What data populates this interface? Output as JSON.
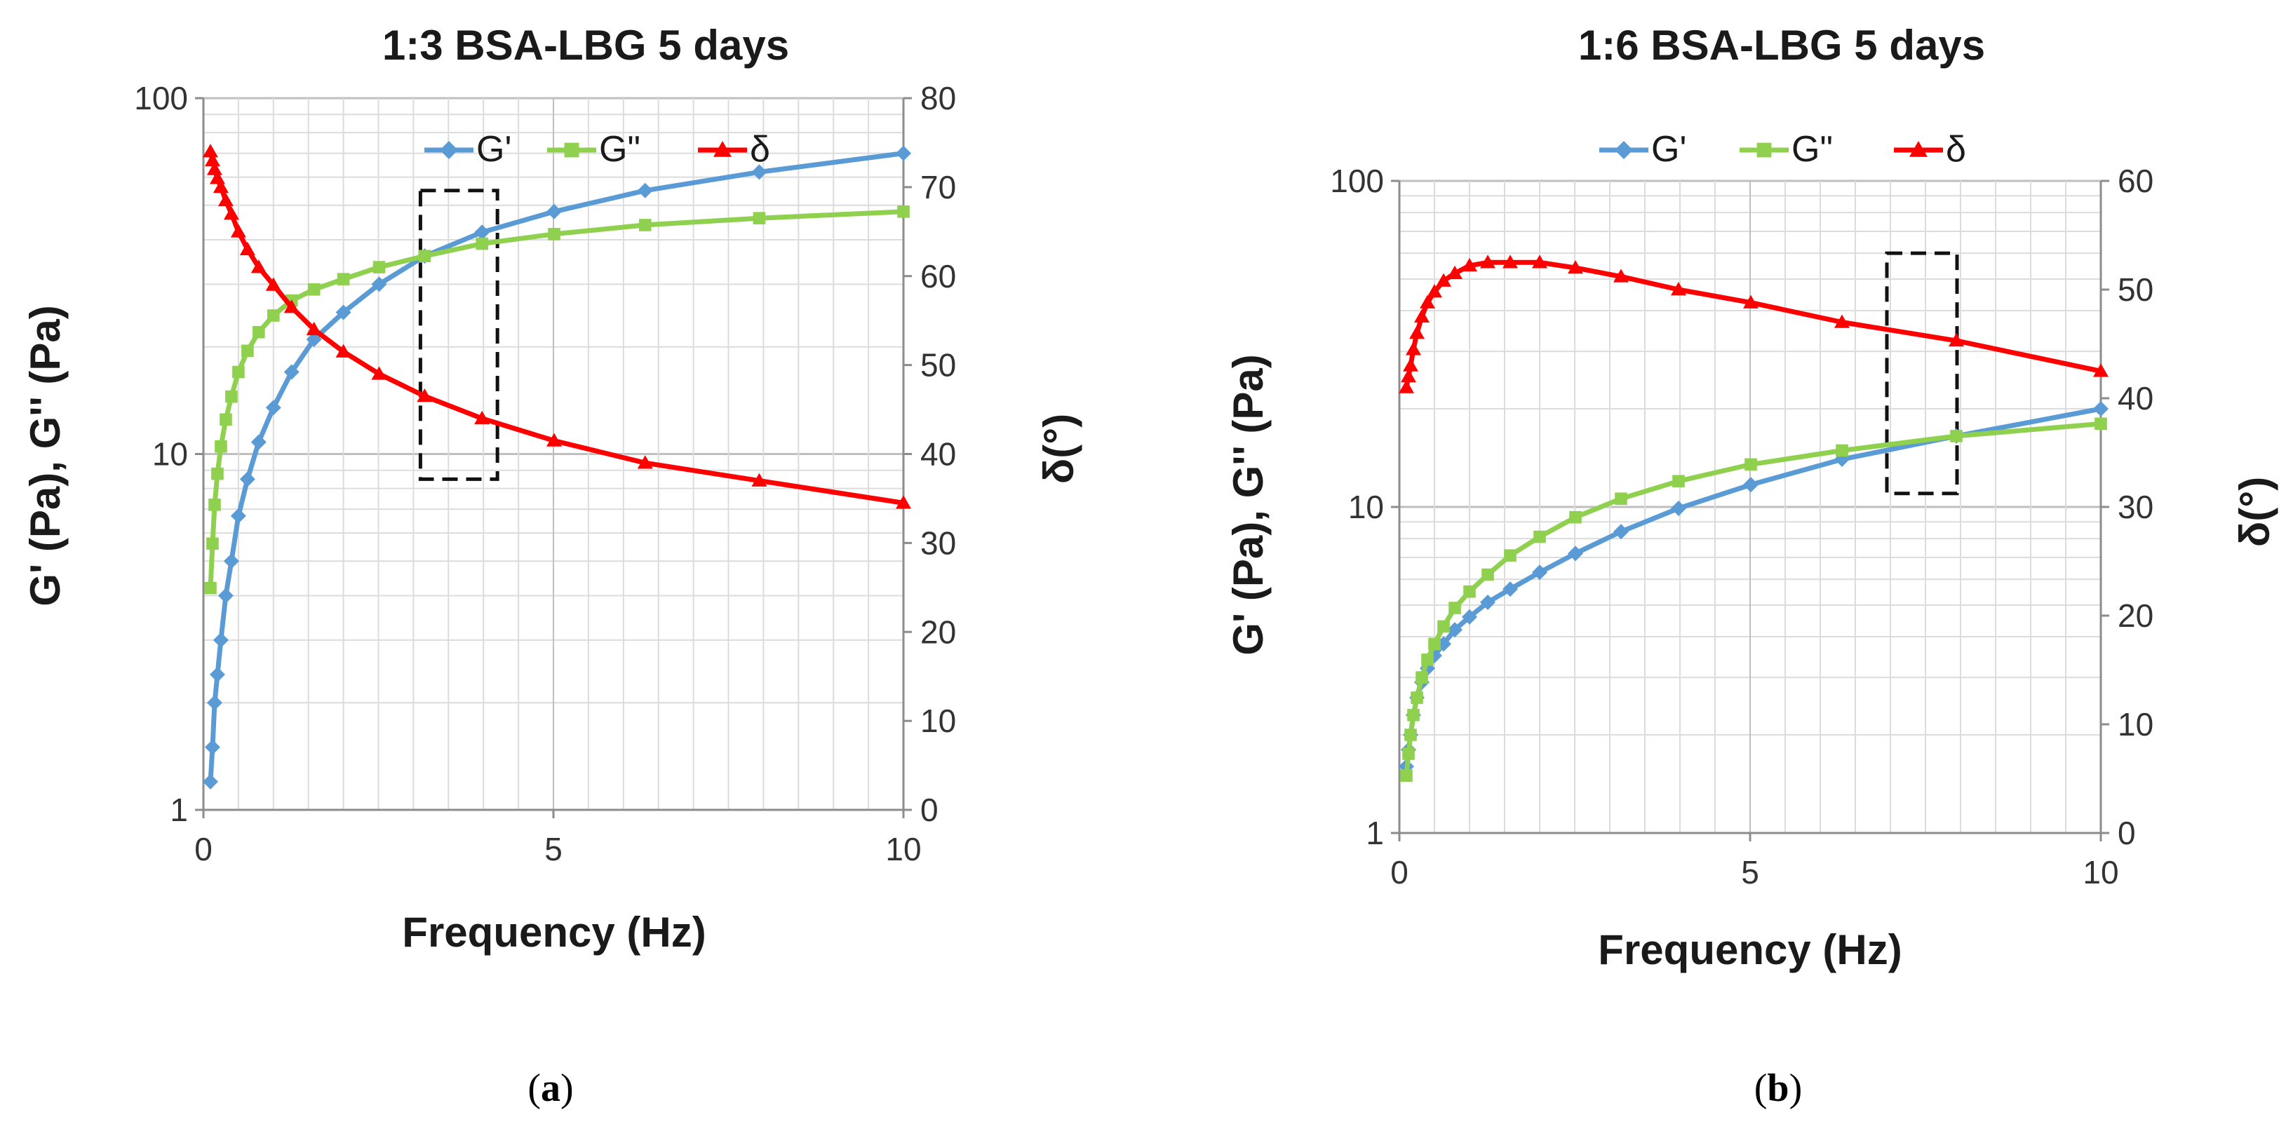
{
  "chart_data": [
    {
      "type": "line",
      "panel_label": "a",
      "title": "1:3 BSA-LBG 5 days",
      "xlabel": "Frequency (Hz)",
      "ylabel_left": "G' (Pa), G'' (Pa)",
      "ylabel_right": "δ(°)",
      "x_range": [
        0,
        10
      ],
      "x_ticks": [
        "0",
        "5",
        "10"
      ],
      "y_left_scale": "log",
      "y_left_range": [
        1,
        100
      ],
      "y_left_ticks": [
        "1",
        "10",
        "100"
      ],
      "y_right_range": [
        0,
        80
      ],
      "y_right_ticks": [
        "0",
        "10",
        "20",
        "30",
        "40",
        "50",
        "60",
        "70",
        "80"
      ],
      "grid": true,
      "legend_position": "top",
      "highlight_box": {
        "x_range": [
          3.1,
          4.2
        ],
        "y_range": [
          8.5,
          55
        ]
      },
      "series": [
        {
          "name": "G'",
          "axis": "left",
          "color": "#5b9bd5",
          "marker": "diamond",
          "x": [
            0.1,
            0.13,
            0.16,
            0.2,
            0.25,
            0.32,
            0.4,
            0.5,
            0.63,
            0.79,
            1.0,
            1.26,
            1.58,
            2.0,
            2.51,
            3.16,
            3.98,
            5.01,
            6.31,
            7.94,
            10.0
          ],
          "y": [
            1.2,
            1.5,
            2.0,
            2.4,
            3.0,
            4.0,
            5.0,
            6.7,
            8.5,
            10.8,
            13.5,
            17.0,
            21.0,
            25.0,
            30.0,
            36.0,
            42.0,
            48.0,
            55.0,
            62.0,
            70.0
          ]
        },
        {
          "name": "G\"",
          "axis": "left",
          "color": "#8fd14f",
          "marker": "square",
          "x": [
            0.1,
            0.13,
            0.16,
            0.2,
            0.25,
            0.32,
            0.4,
            0.5,
            0.63,
            0.79,
            1.0,
            1.26,
            1.58,
            2.0,
            2.51,
            3.16,
            3.98,
            5.01,
            6.31,
            7.94,
            10.0
          ],
          "y": [
            4.2,
            5.6,
            7.2,
            8.8,
            10.5,
            12.5,
            14.5,
            17.0,
            19.5,
            22.0,
            24.5,
            27.0,
            29.0,
            31.0,
            33.5,
            36.0,
            39.0,
            41.5,
            44.0,
            46.0,
            48.0
          ]
        },
        {
          "name": "δ",
          "axis": "right",
          "color": "#ff0000",
          "marker": "triangle",
          "x": [
            0.1,
            0.13,
            0.16,
            0.2,
            0.25,
            0.32,
            0.4,
            0.5,
            0.63,
            0.79,
            1.0,
            1.26,
            1.58,
            2.0,
            2.51,
            3.16,
            3.98,
            5.01,
            6.31,
            7.94,
            10.0
          ],
          "y": [
            74.0,
            73.0,
            72.0,
            71.0,
            70.0,
            68.5,
            67.0,
            65.0,
            63.0,
            61.0,
            59.0,
            56.5,
            54.0,
            51.5,
            49.0,
            46.5,
            44.0,
            41.5,
            39.0,
            37.0,
            34.5
          ]
        }
      ]
    },
    {
      "type": "line",
      "panel_label": "b",
      "title": "1:6 BSA-LBG 5 days",
      "xlabel": "Frequency (Hz)",
      "ylabel_left": "G' (Pa), G'' (Pa)",
      "ylabel_right": "δ(°)",
      "x_range": [
        0,
        10
      ],
      "x_ticks": [
        "0",
        "5",
        "10"
      ],
      "y_left_scale": "log",
      "y_left_range": [
        1,
        100
      ],
      "y_left_ticks": [
        "1",
        "10",
        "100"
      ],
      "y_right_range": [
        0,
        60
      ],
      "y_right_ticks": [
        "0",
        "10",
        "20",
        "30",
        "40",
        "50",
        "60"
      ],
      "grid": true,
      "legend_position": "top",
      "highlight_box": {
        "x_range": [
          6.95,
          7.95
        ],
        "y_range": [
          11,
          60
        ]
      },
      "series": [
        {
          "name": "G'",
          "axis": "left",
          "color": "#5b9bd5",
          "marker": "diamond",
          "x": [
            0.1,
            0.13,
            0.16,
            0.2,
            0.25,
            0.32,
            0.4,
            0.5,
            0.63,
            0.79,
            1.0,
            1.26,
            1.58,
            2.0,
            2.51,
            3.16,
            3.98,
            5.01,
            6.31,
            7.94,
            10.0
          ],
          "y": [
            1.6,
            1.8,
            2.0,
            2.3,
            2.6,
            2.9,
            3.2,
            3.5,
            3.8,
            4.2,
            4.6,
            5.1,
            5.6,
            6.3,
            7.2,
            8.4,
            9.9,
            11.7,
            14.0,
            16.5,
            20.0
          ]
        },
        {
          "name": "G\"",
          "axis": "left",
          "color": "#8fd14f",
          "marker": "square",
          "x": [
            0.1,
            0.13,
            0.16,
            0.2,
            0.25,
            0.32,
            0.4,
            0.5,
            0.63,
            0.79,
            1.0,
            1.26,
            1.58,
            2.0,
            2.51,
            3.16,
            3.98,
            5.01,
            6.31,
            7.94,
            10.0
          ],
          "y": [
            1.5,
            1.75,
            2.0,
            2.3,
            2.6,
            3.0,
            3.4,
            3.8,
            4.3,
            4.9,
            5.5,
            6.2,
            7.1,
            8.1,
            9.3,
            10.6,
            12.0,
            13.5,
            14.9,
            16.5,
            18.0
          ]
        },
        {
          "name": "δ",
          "axis": "right",
          "color": "#ff0000",
          "marker": "triangle",
          "x": [
            0.1,
            0.13,
            0.16,
            0.2,
            0.25,
            0.32,
            0.4,
            0.5,
            0.63,
            0.79,
            1.0,
            1.26,
            1.58,
            2.0,
            2.51,
            3.16,
            3.98,
            5.01,
            6.31,
            7.94,
            10.0
          ],
          "y": [
            41.0,
            42.0,
            43.0,
            44.5,
            46.0,
            47.5,
            48.8,
            49.8,
            50.8,
            51.5,
            52.2,
            52.5,
            52.5,
            52.5,
            52.0,
            51.2,
            50.0,
            48.8,
            47.0,
            45.3,
            42.5
          ]
        }
      ]
    }
  ]
}
